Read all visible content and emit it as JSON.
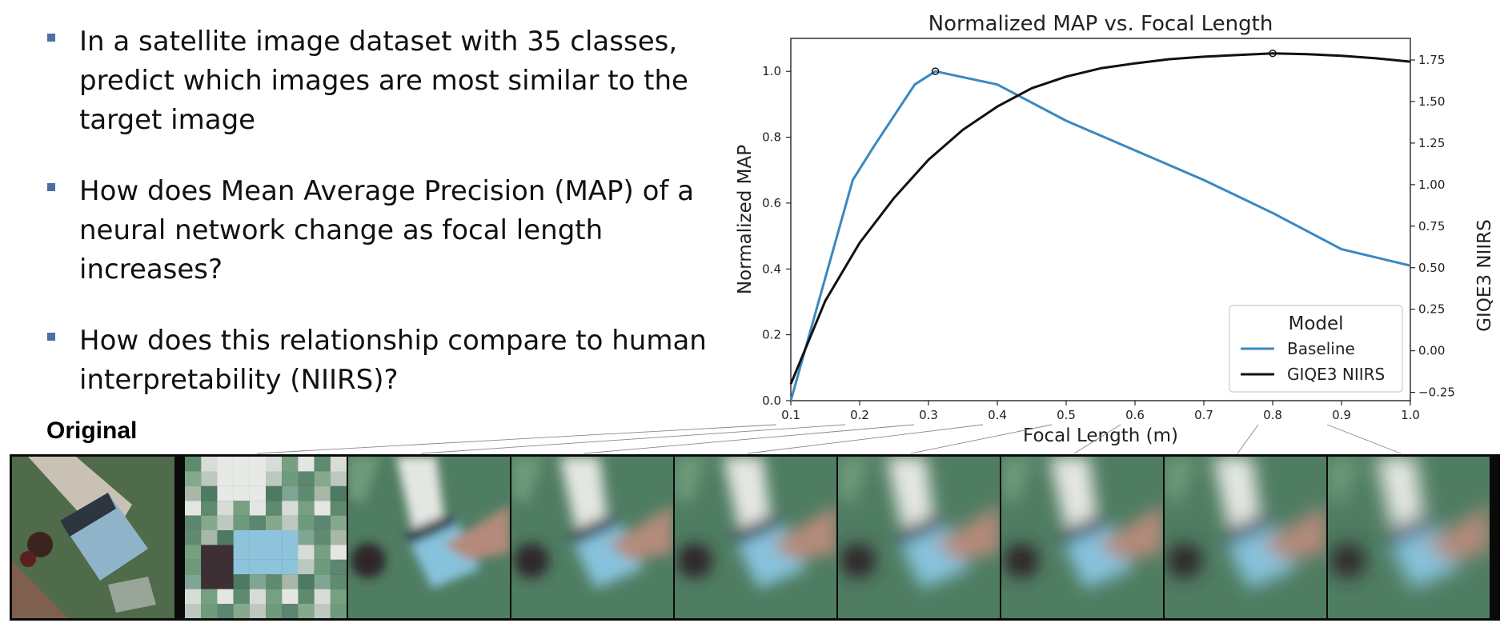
{
  "bullets": [
    "In a satellite image dataset with 35 classes, predict which images are most similar to the target image",
    "How does Mean Average Precision (MAP) of a neural network change as focal length increases?",
    "How does this relationship compare to human interpretability (NIIRS)?"
  ],
  "original_label": "Original",
  "chart_data": {
    "type": "line",
    "title": "Normalized MAP vs. Focal Length",
    "xlabel": "Focal Length (m)",
    "ylabel": "Normalized MAP",
    "y2label": "GIQE3 NIIRS",
    "xlim": [
      0.1,
      1.0
    ],
    "ylim": [
      0.0,
      1.1
    ],
    "y2lim": [
      -0.3,
      1.88
    ],
    "xticks": [
      "0.1",
      "0.2",
      "0.3",
      "0.4",
      "0.5",
      "0.6",
      "0.7",
      "0.8",
      "0.9",
      "1.0"
    ],
    "yticks": [
      "0.0",
      "0.2",
      "0.4",
      "0.6",
      "0.8",
      "1.0"
    ],
    "y2ticks": [
      "−0.25",
      "0.00",
      "0.25",
      "0.50",
      "0.75",
      "1.00",
      "1.25",
      "1.50",
      "1.75"
    ],
    "legend_title": "Model",
    "legend_position": "lower-right",
    "series": [
      {
        "name": "Baseline",
        "color": "#3a88c2",
        "axis": "left",
        "x": [
          0.1,
          0.19,
          0.22,
          0.28,
          0.31,
          0.4,
          0.5,
          0.6,
          0.7,
          0.8,
          0.9,
          1.0
        ],
        "y": [
          0.0,
          0.67,
          0.77,
          0.96,
          1.0,
          0.96,
          0.85,
          0.76,
          0.67,
          0.57,
          0.46,
          0.41
        ],
        "marker_x": 0.31,
        "marker_y": 1.0
      },
      {
        "name": "GIQE3 NIIRS",
        "color": "#111111",
        "axis": "right",
        "x": [
          0.1,
          0.15,
          0.2,
          0.25,
          0.3,
          0.35,
          0.4,
          0.45,
          0.5,
          0.55,
          0.6,
          0.65,
          0.7,
          0.75,
          0.8,
          0.85,
          0.9,
          0.95,
          1.0
        ],
        "y": [
          -0.2,
          0.3,
          0.65,
          0.92,
          1.15,
          1.33,
          1.47,
          1.58,
          1.65,
          1.7,
          1.73,
          1.755,
          1.77,
          1.78,
          1.79,
          1.785,
          1.775,
          1.76,
          1.74
        ],
        "marker_x": 0.8,
        "marker_y": 1.79
      }
    ]
  }
}
